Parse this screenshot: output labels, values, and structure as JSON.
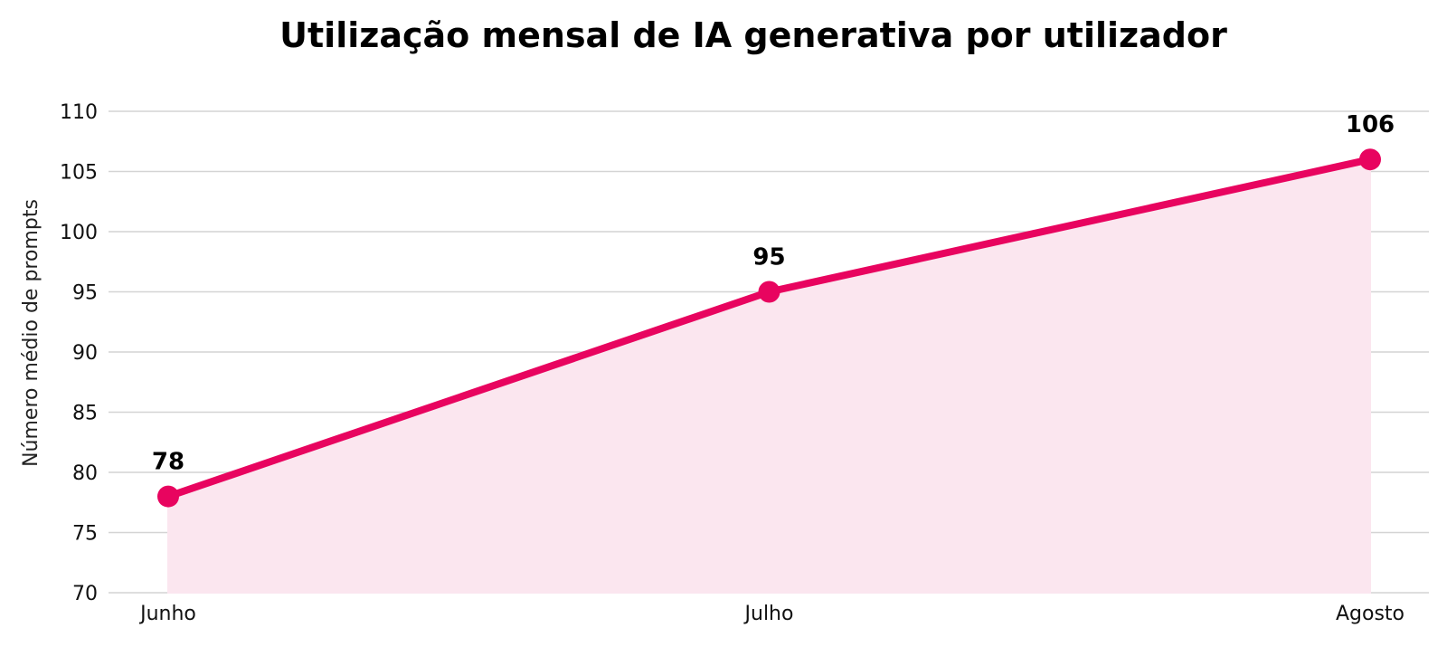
{
  "chart_data": {
    "type": "line",
    "title": "Utilização mensal de IA generativa por utilizador",
    "xlabel": "",
    "ylabel": "Número médio de prompts",
    "categories": [
      "Junho",
      "Julho",
      "Agosto"
    ],
    "series": [
      {
        "values": [
          78,
          95,
          106
        ],
        "data_labels": [
          "78",
          "95",
          "106"
        ]
      }
    ],
    "ylim": [
      70,
      110
    ],
    "yticks": [
      70,
      75,
      80,
      85,
      90,
      95,
      100,
      105,
      110
    ],
    "ytick_labels": [
      "70",
      "75",
      "80",
      "85",
      "90",
      "95",
      "100",
      "105",
      "110"
    ],
    "grid": "horizontal",
    "area_fill": true,
    "legend": "none",
    "colors": {
      "line": "#e8045f",
      "fill": "#fbe6ef",
      "grid": "#d4d4d4"
    }
  }
}
